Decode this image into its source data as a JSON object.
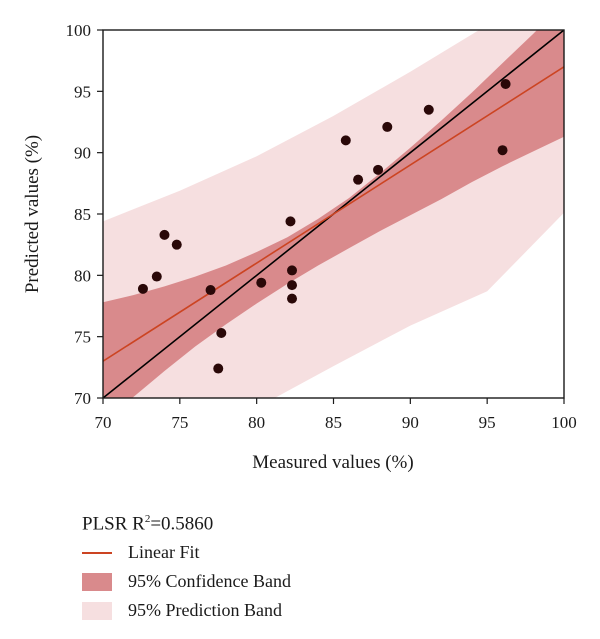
{
  "chart_data": {
    "type": "scatter",
    "xlabel": "Measured values (%)",
    "ylabel": "Predicted values (%)",
    "xlim": [
      70,
      100
    ],
    "ylim": [
      70,
      100
    ],
    "xticks": [
      70,
      75,
      80,
      85,
      90,
      95,
      100
    ],
    "yticks": [
      70,
      75,
      80,
      85,
      90,
      95,
      100
    ],
    "points": [
      {
        "x": 72.6,
        "y": 78.9
      },
      {
        "x": 73.5,
        "y": 79.9
      },
      {
        "x": 74.0,
        "y": 83.3
      },
      {
        "x": 74.8,
        "y": 82.5
      },
      {
        "x": 77.0,
        "y": 78.8
      },
      {
        "x": 77.5,
        "y": 72.4
      },
      {
        "x": 77.7,
        "y": 75.3
      },
      {
        "x": 80.3,
        "y": 79.4
      },
      {
        "x": 82.2,
        "y": 84.4
      },
      {
        "x": 82.3,
        "y": 80.4
      },
      {
        "x": 82.3,
        "y": 79.2
      },
      {
        "x": 82.3,
        "y": 78.1
      },
      {
        "x": 85.8,
        "y": 91.0
      },
      {
        "x": 86.6,
        "y": 87.8
      },
      {
        "x": 87.9,
        "y": 88.6
      },
      {
        "x": 88.5,
        "y": 92.1
      },
      {
        "x": 91.2,
        "y": 93.5
      },
      {
        "x": 96.0,
        "y": 90.2
      },
      {
        "x": 96.2,
        "y": 95.6
      }
    ],
    "linear_fit": {
      "x": [
        70,
        100
      ],
      "y": [
        73.0,
        97.0
      ]
    },
    "reference_line": {
      "x": [
        70,
        100
      ],
      "y": [
        70,
        100
      ]
    },
    "confidence_band": {
      "x": [
        70,
        72,
        74,
        76,
        78,
        80,
        82,
        84,
        86,
        88,
        90,
        92,
        94,
        96,
        98,
        100
      ],
      "upper": [
        77.8,
        78.4,
        79.1,
        79.9,
        80.8,
        81.9,
        83.1,
        84.6,
        86.3,
        88.3,
        90.4,
        92.6,
        94.9,
        97.3,
        99.7,
        102.2
      ],
      "lower": [
        67.9,
        70.1,
        72.2,
        74.2,
        76.0,
        77.7,
        79.3,
        80.8,
        82.2,
        83.6,
        84.9,
        86.2,
        87.6,
        88.9,
        90.1,
        91.3
      ]
    },
    "prediction_band": {
      "x": [
        70,
        75,
        80,
        85,
        90,
        95,
        100
      ],
      "upper": [
        84.4,
        86.9,
        89.7,
        93.0,
        96.6,
        100.4,
        104.3
      ],
      "lower": [
        62.0,
        65.6,
        69.2,
        72.6,
        75.9,
        78.7,
        85.1
      ]
    },
    "colors": {
      "points": "#2a0808",
      "linear_fit": "#cc4422",
      "reference_line": "#000000",
      "confidence_band": "#d98a8c",
      "prediction_band": "#f6dfe0"
    },
    "legend": {
      "title": "PLSR R",
      "title_sup": "2",
      "title_value": "=0.5860",
      "fit_label": "Linear Fit",
      "confidence_label": "95% Confidence Band",
      "prediction_label": "95% Prediction Band"
    },
    "grid": false
  }
}
